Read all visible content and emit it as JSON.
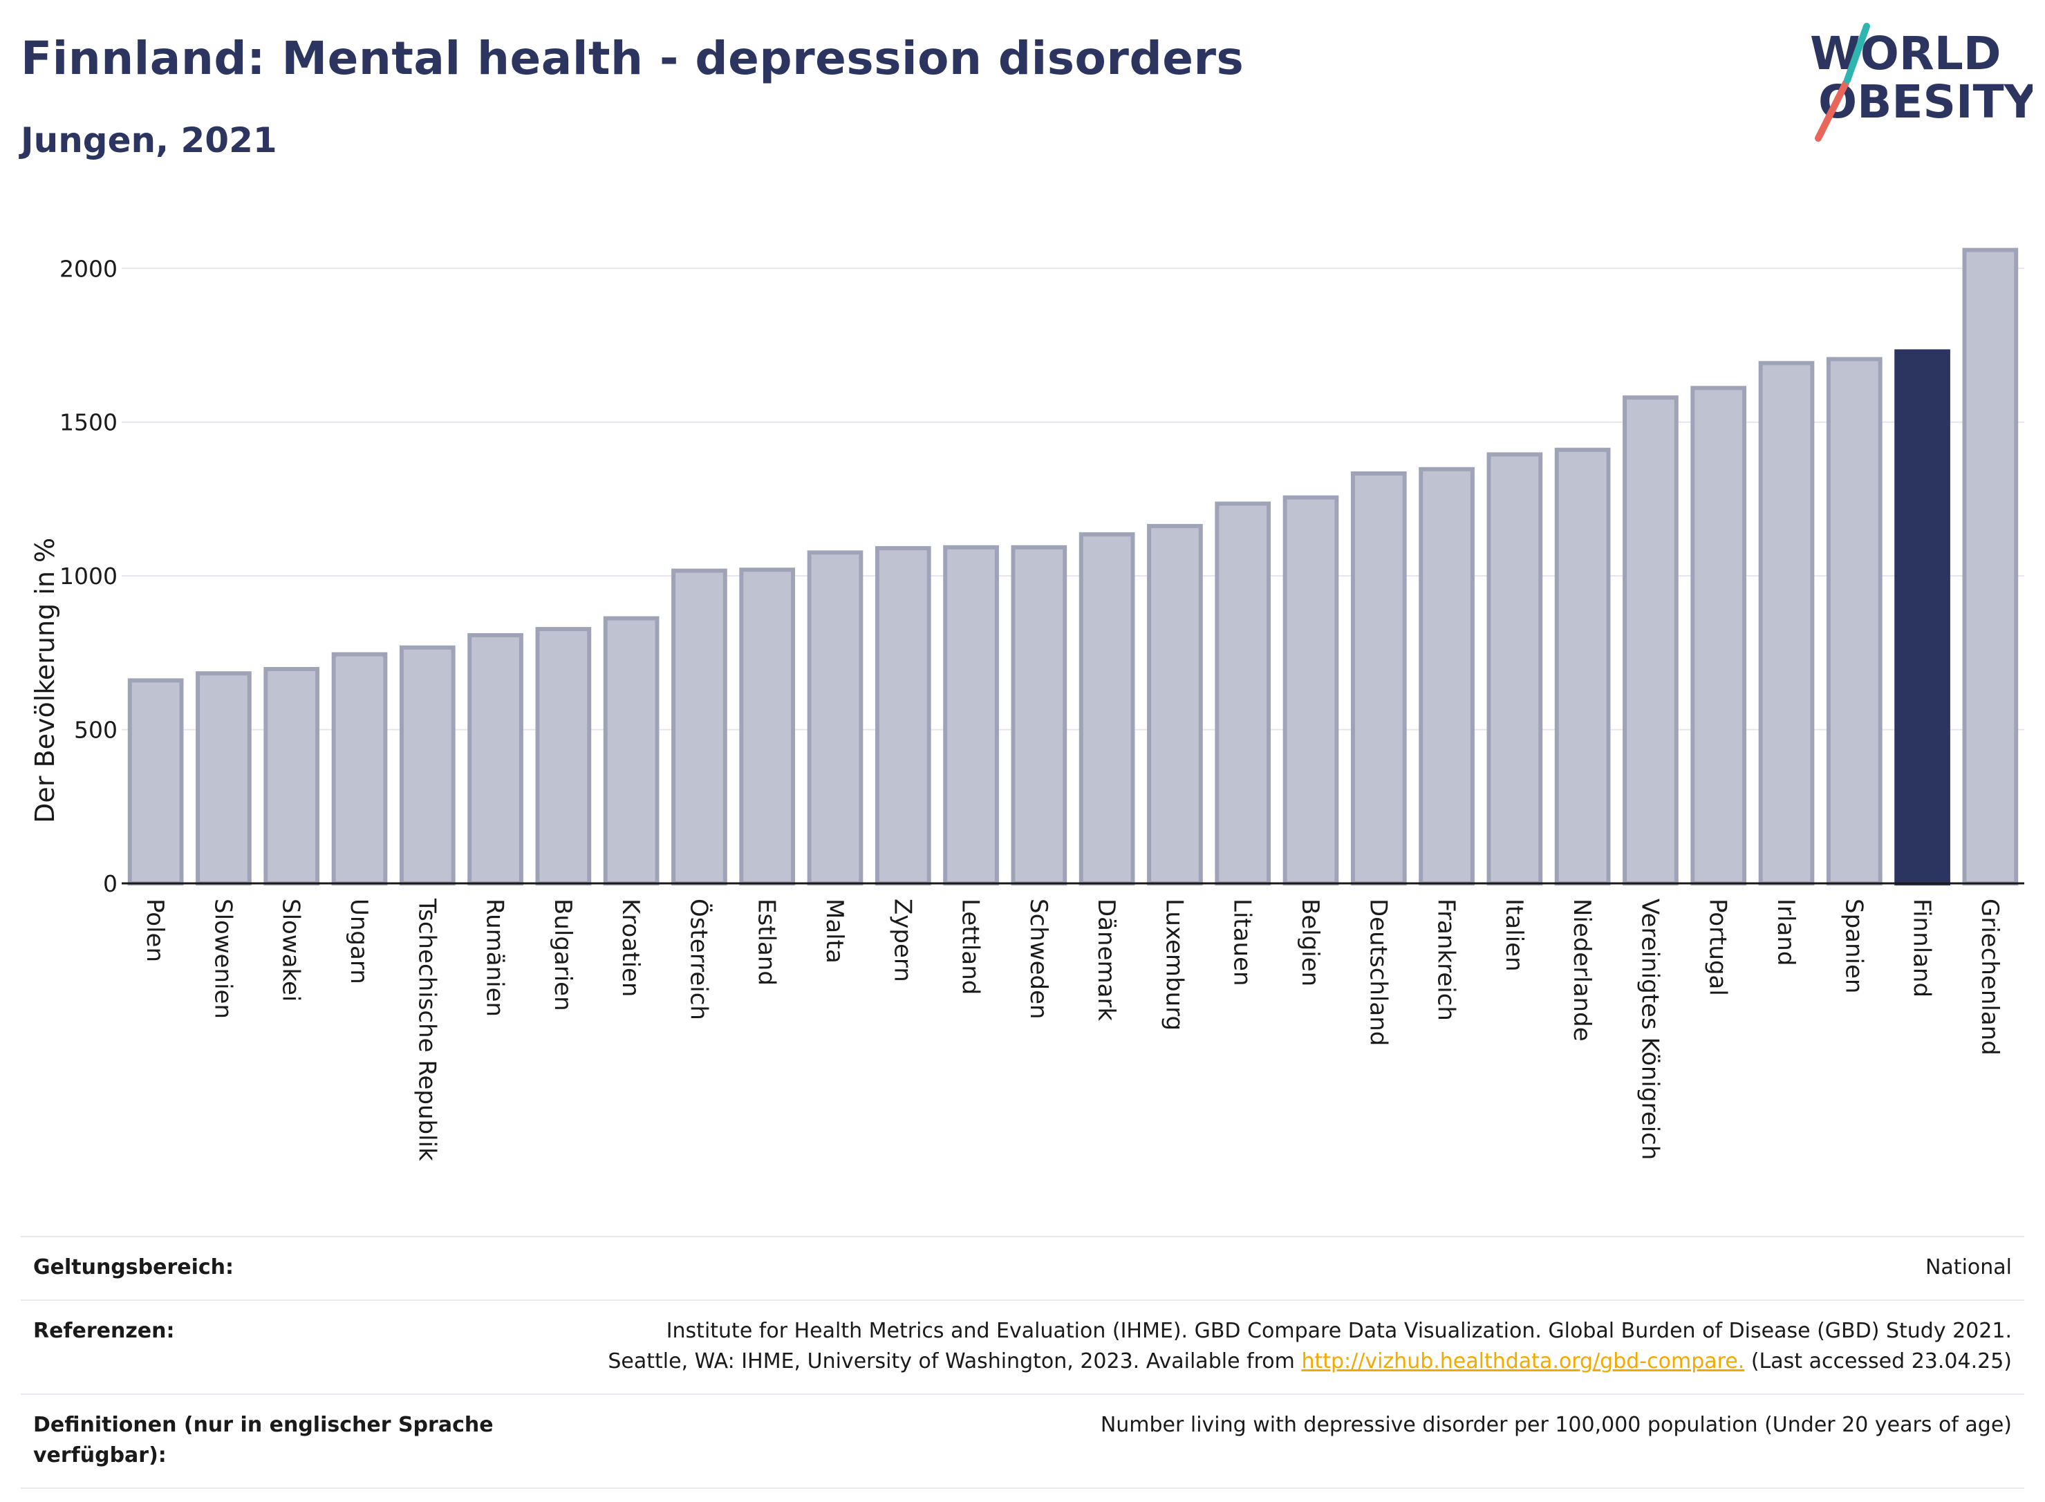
{
  "header": {
    "title": "Finnland: Mental health - depression disorders",
    "subtitle": "Jungen, 2021"
  },
  "logo": {
    "line1": "WORLD",
    "line2": "OBESITY"
  },
  "chart_data": {
    "type": "bar",
    "title": "Finnland: Mental health - depression disorders",
    "subtitle": "Jungen, 2021",
    "ylabel": "Der Bevölkerung in %",
    "xlabel": "",
    "ylim": [
      0,
      2140
    ],
    "yticks": [
      0,
      500,
      1000,
      1500,
      2000
    ],
    "grid": true,
    "highlight": "Finnland",
    "colors": {
      "default_fill": "#bfc2d0",
      "default_stroke": "#9ea3b8",
      "highlight_fill": "#2b3560"
    },
    "categories": [
      "Polen",
      "Slowenien",
      "Slowakei",
      "Ungarn",
      "Tschechische Republik",
      "Rumänien",
      "Bulgarien",
      "Kroatien",
      "Österreich",
      "Estland",
      "Malta",
      "Zypern",
      "Lettland",
      "Schweden",
      "Dänemark",
      "Luxemburg",
      "Litauen",
      "Belgien",
      "Deutschland",
      "Frankreich",
      "Italien",
      "Niederlande",
      "Vereinigtes Königreich",
      "Portugal",
      "Irland",
      "Spanien",
      "Finnland",
      "Griechenland"
    ],
    "values": [
      660,
      683,
      697,
      745,
      767,
      807,
      827,
      862,
      1017,
      1020,
      1076,
      1090,
      1093,
      1093,
      1135,
      1162,
      1235,
      1255,
      1333,
      1347,
      1395,
      1410,
      1580,
      1611,
      1692,
      1705,
      1730,
      2060
    ]
  },
  "info": [
    {
      "key": "Geltungsbereich:",
      "value": "National"
    },
    {
      "key": "Referenzen:",
      "value_line1": "Institute for Health Metrics and Evaluation (IHME). GBD Compare Data Visualization. Global Burden of Disease (GBD) Study 2021.",
      "value_line2_pre": "Seattle, WA: IHME, University of Washington, 2023. Available from",
      "link": "http://vizhub.healthdata.org/gbd-compare.",
      "value_line2_post": "(Last accessed 23.04.25)"
    },
    {
      "key": "Definitionen (nur in englischer Sprache verfügbar):",
      "value": "Number living with depressive disorder per 100,000 population (Under 20 years of age)"
    }
  ]
}
